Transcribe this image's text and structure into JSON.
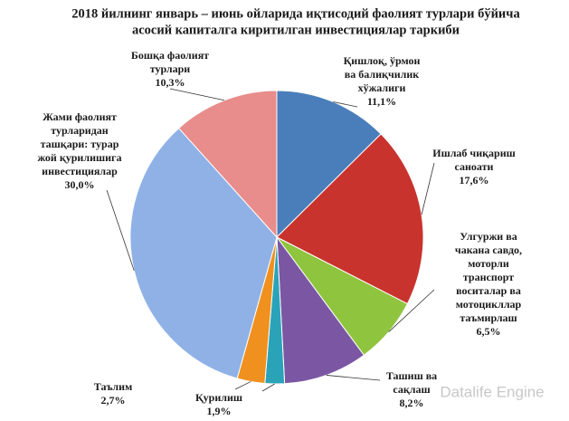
{
  "chart_data": {
    "type": "pie",
    "title": [
      "2018 йилнинг январь – июнь ойларида иқтисодий фаолият турлари бўйича",
      "асосий капиталга киритилган инвестициялар таркиби"
    ],
    "categories": [
      [
        "Қишлоқ, ўрмон",
        "ва балиқчилик",
        "хўжалиги"
      ],
      [
        "Ишлаб чиқариш",
        "саноати"
      ],
      [
        "Улгуржи ва",
        "чакана савдо,",
        "моторли",
        "транспорт",
        "воситалар ва",
        "мотоцикллар",
        "таъмирлаш"
      ],
      [
        "Ташиш ва",
        "сақлаш"
      ],
      [
        "Қурилиш"
      ],
      [
        "Таълим"
      ],
      [
        "Жами фаолият",
        "турларидан",
        "ташқари: турар",
        "жой қурилишига",
        "инвестициялар"
      ],
      [
        "Бошқа фаолият",
        "турлари"
      ]
    ],
    "values": [
      11.1,
      17.6,
      6.5,
      8.2,
      1.9,
      2.7,
      30.0,
      10.3
    ],
    "value_labels": [
      "11,1%",
      "17,6%",
      "6,5%",
      "8,2%",
      "1,9%",
      "2,7%",
      "30,0%",
      "10,3%"
    ],
    "colors": [
      "#4a7ebb",
      "#c9332d",
      "#8fc43f",
      "#7b57a3",
      "#2aa3b8",
      "#f0901e",
      "#8fb1e6",
      "#e88d8b"
    ],
    "watermark": "Datalife Engine"
  }
}
